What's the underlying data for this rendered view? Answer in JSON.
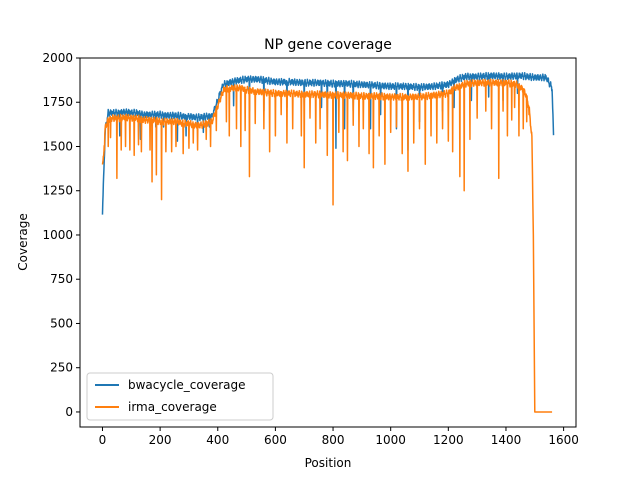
{
  "chart_data": {
    "type": "line",
    "title": "NP gene coverage",
    "xlabel": "Position",
    "ylabel": "Coverage",
    "xlim": [
      -78,
      1643
    ],
    "ylim": [
      -85,
      2000
    ],
    "xticks": [
      0,
      200,
      400,
      600,
      800,
      1000,
      1200,
      1400,
      1600
    ],
    "yticks": [
      0,
      250,
      500,
      750,
      1000,
      1250,
      1500,
      1750,
      2000
    ],
    "grid": false,
    "legend_position": "lower-left",
    "series": [
      {
        "name": "bwacycle_coverage",
        "color": "#1f77b4",
        "x": [
          0,
          5,
          10,
          20,
          30,
          40,
          60,
          80,
          100,
          120,
          140,
          160,
          180,
          200,
          220,
          240,
          260,
          280,
          300,
          320,
          340,
          360,
          380,
          400,
          410,
          420,
          440,
          460,
          480,
          500,
          520,
          540,
          560,
          600,
          650,
          700,
          750,
          800,
          850,
          900,
          950,
          1000,
          1050,
          1100,
          1150,
          1200,
          1230,
          1260,
          1300,
          1350,
          1400,
          1450,
          1500,
          1540,
          1550,
          1560,
          1565
        ],
        "y": [
          1115,
          1380,
          1600,
          1690,
          1690,
          1690,
          1690,
          1695,
          1690,
          1690,
          1680,
          1680,
          1680,
          1680,
          1675,
          1675,
          1675,
          1670,
          1670,
          1665,
          1665,
          1670,
          1670,
          1760,
          1810,
          1850,
          1860,
          1870,
          1875,
          1880,
          1880,
          1880,
          1875,
          1865,
          1865,
          1860,
          1860,
          1855,
          1855,
          1850,
          1845,
          1840,
          1840,
          1835,
          1840,
          1850,
          1880,
          1895,
          1895,
          1900,
          1895,
          1900,
          1890,
          1890,
          1860,
          1830,
          1560
        ],
        "dips": [
          [
            60,
            1560
          ],
          [
            132,
            1540
          ],
          [
            185,
            1610
          ],
          [
            212,
            1610
          ],
          [
            260,
            1530
          ],
          [
            290,
            1560
          ],
          [
            330,
            1600
          ],
          [
            350,
            1580
          ],
          [
            371,
            1610
          ],
          [
            455,
            1730
          ],
          [
            510,
            1700
          ],
          [
            560,
            1700
          ],
          [
            640,
            1720
          ],
          [
            700,
            1730
          ],
          [
            760,
            1720
          ],
          [
            780,
            1580
          ],
          [
            810,
            1490
          ],
          [
            840,
            1600
          ],
          [
            870,
            1700
          ],
          [
            930,
            1600
          ],
          [
            965,
            1680
          ],
          [
            1020,
            1600
          ],
          [
            1060,
            1480
          ],
          [
            1100,
            1640
          ],
          [
            1180,
            1700
          ],
          [
            1220,
            1720
          ],
          [
            1280,
            1760
          ],
          [
            1340,
            1780
          ],
          [
            1390,
            1760
          ],
          [
            1440,
            1800
          ]
        ]
      },
      {
        "name": "irma_coverage",
        "color": "#ff7f0e",
        "x": [
          0,
          5,
          10,
          20,
          30,
          40,
          60,
          80,
          100,
          120,
          140,
          160,
          180,
          200,
          220,
          240,
          260,
          280,
          300,
          320,
          340,
          360,
          380,
          400,
          420,
          440,
          460,
          480,
          500,
          540,
          600,
          650,
          700,
          750,
          800,
          850,
          900,
          950,
          1000,
          1050,
          1100,
          1150,
          1200,
          1220,
          1240,
          1260,
          1300,
          1350,
          1400,
          1440,
          1460,
          1470,
          1480,
          1490,
          1495,
          1500,
          1520,
          1540,
          1560
        ],
        "y": [
          1380,
          1480,
          1610,
          1650,
          1660,
          1660,
          1660,
          1665,
          1660,
          1660,
          1650,
          1650,
          1650,
          1640,
          1640,
          1640,
          1640,
          1630,
          1630,
          1620,
          1620,
          1630,
          1640,
          1730,
          1820,
          1830,
          1830,
          1830,
          1820,
          1810,
          1800,
          1800,
          1795,
          1795,
          1790,
          1790,
          1785,
          1785,
          1780,
          1780,
          1780,
          1790,
          1800,
          1830,
          1840,
          1855,
          1860,
          1860,
          1860,
          1850,
          1820,
          1790,
          1720,
          1550,
          1000,
          0,
          0,
          0,
          0
        ],
        "dips": [
          [
            7,
            1480
          ],
          [
            20,
            1500
          ],
          [
            28,
            1550
          ],
          [
            50,
            1320
          ],
          [
            65,
            1480
          ],
          [
            80,
            1500
          ],
          [
            95,
            1480
          ],
          [
            110,
            1450
          ],
          [
            125,
            1510
          ],
          [
            135,
            1470
          ],
          [
            165,
            1480
          ],
          [
            172,
            1300
          ],
          [
            187,
            1340
          ],
          [
            205,
            1200
          ],
          [
            220,
            1470
          ],
          [
            240,
            1470
          ],
          [
            255,
            1500
          ],
          [
            280,
            1460
          ],
          [
            300,
            1490
          ],
          [
            315,
            1520
          ],
          [
            330,
            1480
          ],
          [
            360,
            1540
          ],
          [
            375,
            1500
          ],
          [
            395,
            1590
          ],
          [
            430,
            1640
          ],
          [
            440,
            1560
          ],
          [
            465,
            1600
          ],
          [
            480,
            1500
          ],
          [
            495,
            1590
          ],
          [
            510,
            1330
          ],
          [
            530,
            1630
          ],
          [
            560,
            1600
          ],
          [
            580,
            1470
          ],
          [
            600,
            1560
          ],
          [
            620,
            1680
          ],
          [
            640,
            1520
          ],
          [
            660,
            1600
          ],
          [
            690,
            1560
          ],
          [
            700,
            1380
          ],
          [
            720,
            1660
          ],
          [
            740,
            1520
          ],
          [
            755,
            1600
          ],
          [
            780,
            1450
          ],
          [
            800,
            1170
          ],
          [
            820,
            1580
          ],
          [
            835,
            1470
          ],
          [
            850,
            1420
          ],
          [
            870,
            1620
          ],
          [
            890,
            1500
          ],
          [
            905,
            1600
          ],
          [
            925,
            1460
          ],
          [
            940,
            1380
          ],
          [
            960,
            1560
          ],
          [
            980,
            1400
          ],
          [
            1000,
            1580
          ],
          [
            1020,
            1610
          ],
          [
            1040,
            1460
          ],
          [
            1060,
            1360
          ],
          [
            1080,
            1520
          ],
          [
            1100,
            1600
          ],
          [
            1120,
            1400
          ],
          [
            1140,
            1560
          ],
          [
            1160,
            1520
          ],
          [
            1180,
            1600
          ],
          [
            1200,
            1530
          ],
          [
            1215,
            1470
          ],
          [
            1240,
            1330
          ],
          [
            1255,
            1250
          ],
          [
            1275,
            1540
          ],
          [
            1300,
            1660
          ],
          [
            1330,
            1700
          ],
          [
            1350,
            1600
          ],
          [
            1375,
            1320
          ],
          [
            1390,
            1700
          ],
          [
            1405,
            1560
          ],
          [
            1420,
            1650
          ],
          [
            1430,
            1720
          ],
          [
            1445,
            1560
          ],
          [
            1460,
            1600
          ],
          [
            1472,
            1640
          ],
          [
            1480,
            1680
          ]
        ]
      }
    ]
  }
}
